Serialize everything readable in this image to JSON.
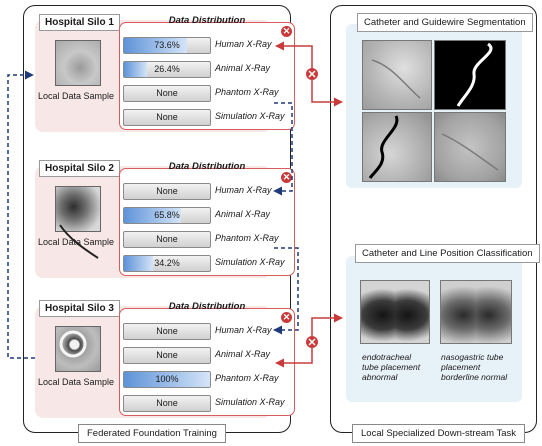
{
  "panels": {
    "federated_caption": "Federated Foundation Training",
    "downstream_caption": "Local Specialized Down-stream Task"
  },
  "distribution_title": "Data Distribution",
  "local_label": "Local Data Sample",
  "silos": [
    {
      "title": "Hospital Silo 1",
      "rows": [
        {
          "text": "73.6%",
          "fraction": 0.736,
          "label": "Human X-Ray"
        },
        {
          "text": "26.4%",
          "fraction": 0.264,
          "label": "Animal X-Ray"
        },
        {
          "text": "None",
          "fraction": 0,
          "label": "Phantom X-Ray"
        },
        {
          "text": "None",
          "fraction": 0,
          "label": "Simulation X-Ray"
        }
      ]
    },
    {
      "title": "Hospital Silo 2",
      "rows": [
        {
          "text": "None",
          "fraction": 0,
          "label": "Human X-Ray"
        },
        {
          "text": "65.8%",
          "fraction": 0.658,
          "label": "Animal X-Ray"
        },
        {
          "text": "None",
          "fraction": 0,
          "label": "Phantom X-Ray"
        },
        {
          "text": "34.2%",
          "fraction": 0.342,
          "label": "Simulation X-Ray"
        }
      ]
    },
    {
      "title": "Hospital Silo 3",
      "rows": [
        {
          "text": "None",
          "fraction": 0,
          "label": "Human X-Ray"
        },
        {
          "text": "None",
          "fraction": 0,
          "label": "Animal X-Ray"
        },
        {
          "text": "100%",
          "fraction": 1.0,
          "label": "Phantom X-Ray"
        },
        {
          "text": "None",
          "fraction": 0,
          "label": "Simulation X-Ray"
        }
      ]
    }
  ],
  "tasks": {
    "segmentation_title": "Catheter and Guidewire Segmentation",
    "classification_title": "Catheter and Line Position Classification",
    "caption_left_lines": [
      "endotracheal",
      "tube placement",
      "abnormal"
    ],
    "caption_right_lines": [
      "nasogastric tube",
      "placement",
      "borderline normal"
    ]
  },
  "colors": {
    "accent_red": "#c93b3b",
    "dist_border": "#d85c5c",
    "silo_bg": "#f7e7e7",
    "task_bg": "#e7f1f8",
    "fill_blue": "#5e93d8",
    "dashed_blue": "#1f3a7a"
  },
  "icons": {
    "blocked": "x-circle-icon"
  }
}
